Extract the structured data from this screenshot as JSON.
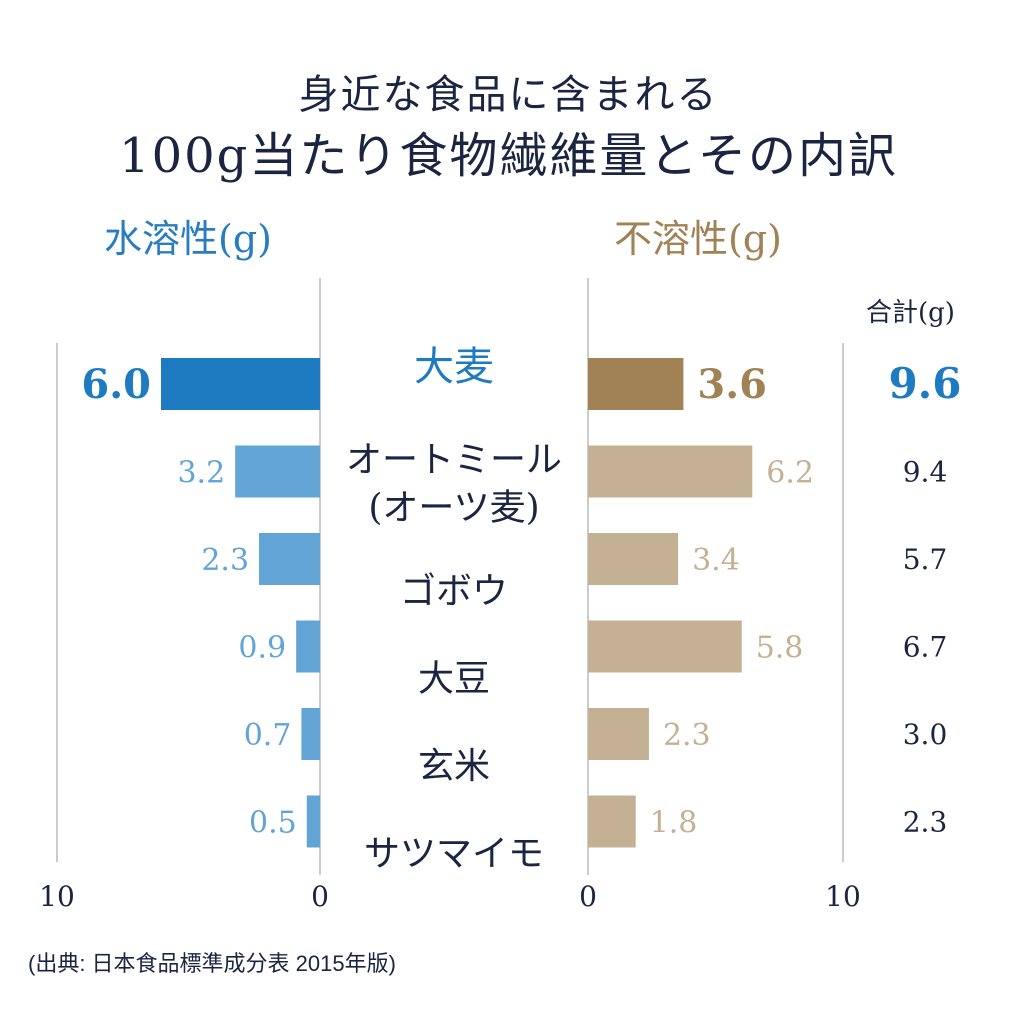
{
  "title": {
    "line1": "身近な食品に含まれる",
    "line2": "100g当たり食物繊維量とその内訳"
  },
  "headers": {
    "soluble": "水溶性(g)",
    "insoluble": "不溶性(g)",
    "total": "合計(g)"
  },
  "source": "(出典: 日本食品標準成分表 2015年版)",
  "colors": {
    "soluble_highlight": "#1f7bc1",
    "soluble": "#63a4d6",
    "insoluble_highlight": "#a08254",
    "insoluble": "#c4b194",
    "text": "#1b2440",
    "axis": "#9a9a9a"
  },
  "chart_data": {
    "type": "bar",
    "orientation": "horizontal-butterfly",
    "title": "身近な食品に含まれる 100g当たり食物繊維量とその内訳",
    "categories": [
      "大麦",
      "オートミール\n(オーツ麦)",
      "ゴボウ",
      "大豆",
      "玄米",
      "サツマイモ"
    ],
    "series": [
      {
        "name": "水溶性(g)",
        "side": "left",
        "values": [
          6.0,
          3.2,
          2.3,
          0.9,
          0.7,
          0.5
        ]
      },
      {
        "name": "不溶性(g)",
        "side": "right",
        "values": [
          3.6,
          6.2,
          3.4,
          5.8,
          2.3,
          1.8
        ]
      }
    ],
    "totals": {
      "name": "合計(g)",
      "values": [
        9.6,
        9.4,
        5.7,
        6.7,
        3.0,
        2.3
      ]
    },
    "value_labels": {
      "soluble": [
        "6.0",
        "3.2",
        "2.3",
        "0.9",
        "0.7",
        "0.5"
      ],
      "insoluble": [
        "3.6",
        "6.2",
        "3.4",
        "5.8",
        "2.3",
        "1.8"
      ],
      "totals": [
        "9.6",
        "9.4",
        "5.7",
        "6.7",
        "3.0",
        "2.3"
      ]
    },
    "highlight_index": 0,
    "left_axis": {
      "range": [
        10,
        0
      ],
      "tick_labels": [
        "10",
        "0"
      ]
    },
    "right_axis": {
      "range": [
        0,
        10
      ],
      "tick_labels": [
        "0",
        "10"
      ]
    },
    "grid": false,
    "legend": "none"
  }
}
